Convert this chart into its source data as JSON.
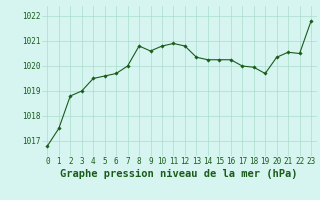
{
  "x": [
    0,
    1,
    2,
    3,
    4,
    5,
    6,
    7,
    8,
    9,
    10,
    11,
    12,
    13,
    14,
    15,
    16,
    17,
    18,
    19,
    20,
    21,
    22,
    23
  ],
  "y": [
    1016.8,
    1017.5,
    1018.8,
    1019.0,
    1019.5,
    1019.6,
    1019.7,
    1020.0,
    1020.8,
    1020.6,
    1020.8,
    1020.9,
    1020.8,
    1020.35,
    1020.25,
    1020.25,
    1020.25,
    1020.0,
    1019.95,
    1019.7,
    1020.35,
    1020.55,
    1020.5,
    1021.8
  ],
  "line_color": "#1a5c1a",
  "marker": "D",
  "marker_size": 1.8,
  "bg_color": "#d6f5f0",
  "grid_color": "#aaddcc",
  "xlabel": "Graphe pression niveau de la mer (hPa)",
  "xlabel_color": "#1a5c1a",
  "ylabel_ticks": [
    1017,
    1018,
    1019,
    1020,
    1021,
    1022
  ],
  "ylabel_labels": [
    "1017",
    "1018",
    "1019",
    "1020",
    "1021",
    "1022"
  ],
  "xticks": [
    0,
    1,
    2,
    3,
    4,
    5,
    6,
    7,
    8,
    9,
    10,
    11,
    12,
    13,
    14,
    15,
    16,
    17,
    18,
    19,
    20,
    21,
    22,
    23
  ],
  "ylim": [
    1016.4,
    1022.4
  ],
  "xlim": [
    -0.5,
    23.5
  ],
  "tick_color": "#1a5c1a",
  "tick_fontsize": 5.5,
  "xlabel_fontsize": 7.5,
  "xlabel_fontweight": "bold",
  "linewidth": 0.8
}
